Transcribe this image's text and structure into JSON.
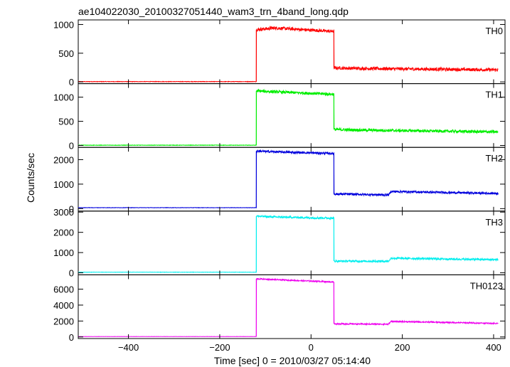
{
  "chart_data": {
    "type": "line",
    "title": "ae104022030_20100327051440_wam3_trn_4band_long.qdp",
    "xlabel": "Time [sec] 0 = 2010/03/27 05:14:40",
    "ylabel": "Counts/sec",
    "xlim": [
      -510,
      425
    ],
    "x_ticks": [
      -400,
      -200,
      0,
      200,
      400
    ],
    "x_tick_labels": [
      "−400",
      "−200",
      "0",
      "200",
      "400"
    ],
    "grid": false,
    "panels": [
      {
        "name": "TH0",
        "color": "#ff0000",
        "ylim": [
          -30,
          1080
        ],
        "y_ticks": [
          0,
          500,
          1000
        ],
        "y_tick_labels": [
          "0",
          "500",
          "1000"
        ],
        "segments": [
          [
            -510,
            5
          ],
          [
            -120,
            5
          ],
          [
            -120,
            910
          ],
          [
            -80,
            940
          ],
          [
            50,
            880
          ],
          [
            50,
            245
          ],
          [
            100,
            235
          ],
          [
            410,
            210
          ]
        ],
        "noise": 28
      },
      {
        "name": "TH1",
        "color": "#00ee00",
        "ylim": [
          -40,
          1280
        ],
        "y_ticks": [
          0,
          500,
          1000
        ],
        "y_tick_labels": [
          "0",
          "500",
          "1000"
        ],
        "segments": [
          [
            -510,
            5
          ],
          [
            -120,
            5
          ],
          [
            -120,
            1130
          ],
          [
            -80,
            1110
          ],
          [
            50,
            1060
          ],
          [
            50,
            330
          ],
          [
            100,
            320
          ],
          [
            410,
            280
          ]
        ],
        "noise": 30
      },
      {
        "name": "TH2",
        "color": "#0000dd",
        "ylim": [
          -100,
          2500
        ],
        "y_ticks": [
          0,
          1000,
          2000
        ],
        "y_tick_labels": [
          "0",
          "1000",
          "2000"
        ],
        "segments": [
          [
            -510,
            40
          ],
          [
            -120,
            40
          ],
          [
            -120,
            2350
          ],
          [
            -80,
            2320
          ],
          [
            50,
            2250
          ],
          [
            50,
            600
          ],
          [
            170,
            560
          ],
          [
            175,
            700
          ],
          [
            410,
            620
          ]
        ],
        "noise": 45
      },
      {
        "name": "TH3",
        "color": "#00eeee",
        "ylim": [
          -100,
          3050
        ],
        "y_ticks": [
          0,
          1000,
          2000,
          3000
        ],
        "y_tick_labels": [
          "0",
          "1000",
          "2000",
          "3000"
        ],
        "segments": [
          [
            -510,
            30
          ],
          [
            -120,
            30
          ],
          [
            -120,
            2800
          ],
          [
            -80,
            2760
          ],
          [
            50,
            2700
          ],
          [
            50,
            580
          ],
          [
            170,
            570
          ],
          [
            175,
            720
          ],
          [
            410,
            650
          ]
        ],
        "noise": 50
      },
      {
        "name": "TH0123",
        "color": "#ee00ee",
        "ylim": [
          -200,
          7800
        ],
        "y_ticks": [
          0,
          2000,
          4000,
          6000
        ],
        "y_tick_labels": [
          "0",
          "2000",
          "4000",
          "6000"
        ],
        "segments": [
          [
            -510,
            50
          ],
          [
            -120,
            50
          ],
          [
            -120,
            7300
          ],
          [
            -80,
            7200
          ],
          [
            50,
            6900
          ],
          [
            50,
            1650
          ],
          [
            170,
            1600
          ],
          [
            175,
            1950
          ],
          [
            410,
            1700
          ]
        ],
        "noise": 80
      }
    ]
  }
}
